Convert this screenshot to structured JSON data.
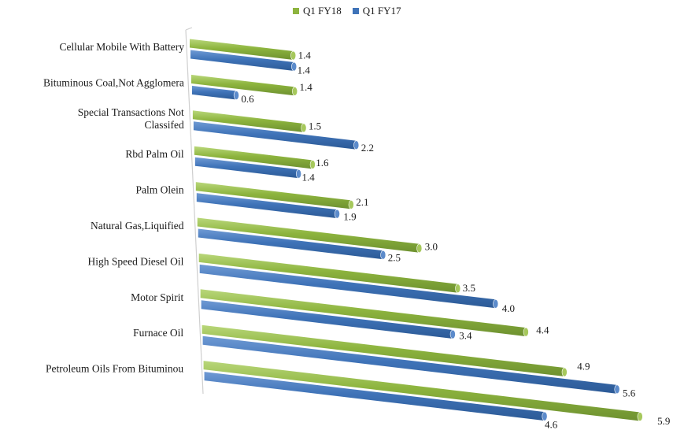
{
  "chart_data": {
    "type": "bar",
    "orientation": "horizontal",
    "perspective": "3d",
    "categories": [
      [
        "Cellular Mobile With Battery"
      ],
      [
        "Bituminous Coal,Not Agglomera"
      ],
      [
        "Special Transactions Not",
        "Classifed"
      ],
      [
        "Rbd Palm Oil"
      ],
      [
        "Palm Olein"
      ],
      [
        "Natural Gas,Liquified"
      ],
      [
        "High Speed Diesel Oil"
      ],
      [
        "Motor Spirit"
      ],
      [
        "Furnace Oil"
      ],
      [
        "Petroleum Oils From Bituminou"
      ]
    ],
    "series": [
      {
        "name": "Q1 FY18",
        "color": "#8db43e",
        "values": [
          1.4,
          1.4,
          1.5,
          1.6,
          2.1,
          3.0,
          3.5,
          4.4,
          4.9,
          5.9
        ]
      },
      {
        "name": "Q1 FY17",
        "color": "#3f73b8",
        "values": [
          1.4,
          0.6,
          2.2,
          1.4,
          1.9,
          2.5,
          4.0,
          3.4,
          5.6,
          4.6
        ]
      }
    ],
    "value_labels": {
      "Q1 FY18": [
        "1.4",
        "1.4",
        "1.5",
        "1.6",
        "2.1",
        "3.0",
        "3.5",
        "4.4",
        "4.9",
        "5.9"
      ],
      "Q1 FY17": [
        "1.4",
        "0.6",
        "2.2",
        "1.4",
        "1.9",
        "2.5",
        "4.0",
        "3.4",
        "5.6",
        "4.6"
      ]
    },
    "legend_position": "top",
    "grid": false,
    "xlim": [
      0,
      6.5
    ]
  }
}
